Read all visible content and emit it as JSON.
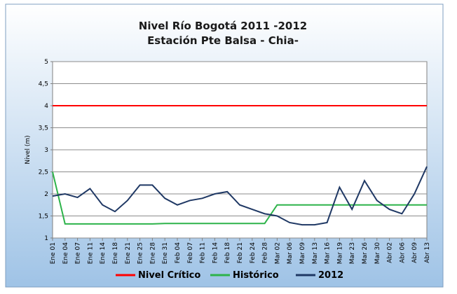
{
  "chart_data": {
    "type": "line",
    "title": "Nivel Río Bogotá 2011 -2012",
    "subtitle": "Estación Pte Balsa - Chia-",
    "y_label": "Nivel (m)",
    "categories": [
      "Ene 01",
      "Ene 04",
      "Ene 07",
      "Ene 11",
      "Ene 14",
      "Ene 18",
      "Ene 21",
      "Ene 25",
      "Ene 28",
      "Ene 31",
      "Feb 04",
      "Feb 07",
      "Feb 11",
      "Feb 14",
      "Feb 18",
      "Feb 21",
      "Feb 24",
      "Feb 28",
      "Mar 02",
      "Mar 06",
      "Mar 09",
      "Mar 13",
      "Mar 16",
      "Mar 19",
      "Mar 23",
      "Mar 26",
      "Mar 30",
      "Abr 02",
      "Abr 06",
      "Abr 09",
      "Abr 13"
    ],
    "series": [
      {
        "name": "Nivel Crítico",
        "color": "#ff0000",
        "values": [
          4,
          4,
          4,
          4,
          4,
          4,
          4,
          4,
          4,
          4,
          4,
          4,
          4,
          4,
          4,
          4,
          4,
          4,
          4,
          4,
          4,
          4,
          4,
          4,
          4,
          4,
          4,
          4,
          4,
          4,
          4
        ]
      },
      {
        "name": "Histórico",
        "color": "#2db34a",
        "values": [
          2.5,
          1.32,
          1.32,
          1.32,
          1.32,
          1.32,
          1.32,
          1.32,
          1.32,
          1.33,
          1.33,
          1.33,
          1.33,
          1.33,
          1.33,
          1.33,
          1.33,
          1.33,
          1.75,
          1.75,
          1.75,
          1.75,
          1.75,
          1.75,
          1.75,
          1.75,
          1.75,
          1.75,
          1.75,
          1.75,
          1.75
        ]
      },
      {
        "name": "2012",
        "color": "#1f3864",
        "values": [
          1.95,
          2.0,
          1.92,
          2.12,
          1.75,
          1.6,
          1.85,
          2.2,
          2.2,
          1.9,
          1.75,
          1.85,
          1.9,
          2.0,
          2.05,
          1.75,
          1.65,
          1.55,
          1.5,
          1.35,
          1.3,
          1.3,
          1.35,
          2.15,
          1.65,
          2.3,
          1.85,
          1.65,
          1.55,
          2.0,
          2.62
        ]
      }
    ],
    "ylim": [
      1,
      5
    ],
    "yticks": [
      1,
      {
        "value": 1.5,
        "label": "1,5"
      },
      2,
      {
        "value": 2.5,
        "label": "2,5"
      },
      3,
      {
        "value": 3.5,
        "label": "3,5"
      },
      4,
      {
        "value": 4.5,
        "label": "4,5"
      },
      5
    ],
    "grid": true,
    "legend": "bottom"
  }
}
